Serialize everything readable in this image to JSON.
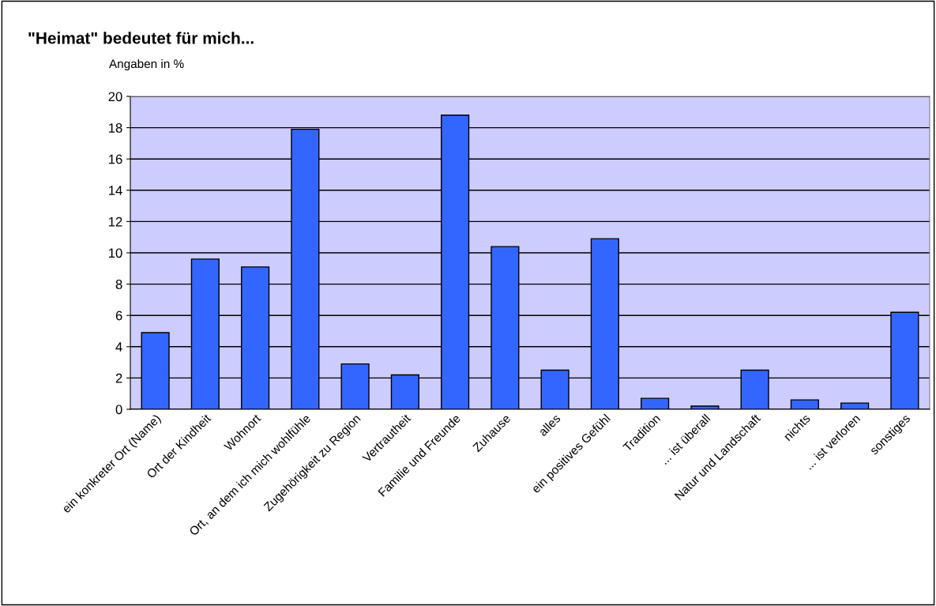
{
  "chart_data": {
    "type": "bar",
    "title": "\"Heimat\" bedeutet für mich...",
    "subtitle": "Angaben in %",
    "categories": [
      "ein konkreter Ort (Name)",
      "Ort der Kindheit",
      "Wohnort",
      "Ort, an dem ich mich wohlfühle",
      "Zugehörigkeit zu Region",
      "Vertrautheit",
      "Familie und Freunde",
      "Zuhause",
      "alles",
      "ein positives Gefühl",
      "Tradition",
      "... ist überall",
      "Natur und Landschaft",
      "nichts",
      "... ist verloren",
      "sonstiges"
    ],
    "values": [
      4.9,
      9.6,
      9.1,
      17.9,
      2.9,
      2.2,
      18.8,
      10.4,
      2.5,
      10.9,
      0.7,
      0.2,
      2.5,
      0.6,
      0.4,
      6.2
    ],
    "color": "#3366ff",
    "ylim": [
      0,
      20
    ],
    "yticks": [
      0,
      2,
      4,
      6,
      8,
      10,
      12,
      14,
      16,
      18,
      20
    ],
    "grid": "y",
    "legend": false
  }
}
